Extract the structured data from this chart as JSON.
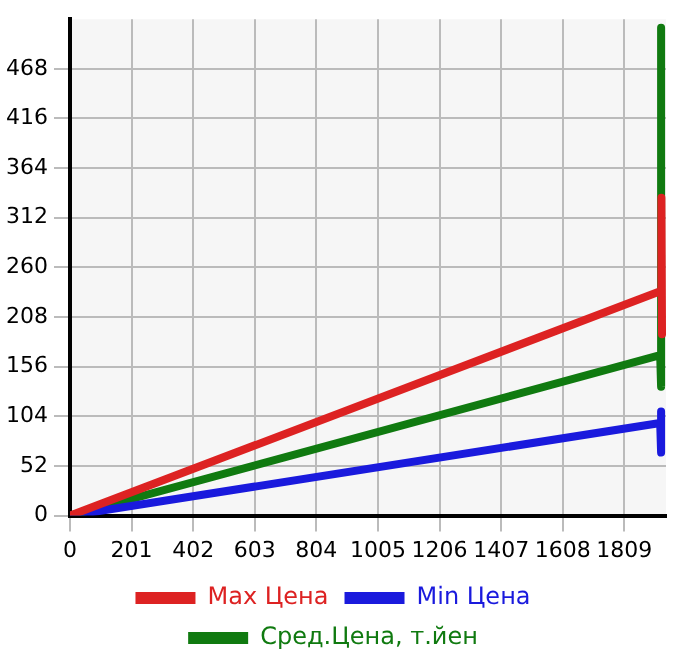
{
  "chart_data": {
    "type": "line",
    "xlim": [
      0,
      1945
    ],
    "xticks": [
      0,
      201,
      402,
      603,
      804,
      1005,
      1206,
      1407,
      1608,
      1809
    ],
    "ylim": [
      0,
      520
    ],
    "yticks": [
      0,
      52,
      104,
      156,
      208,
      260,
      312,
      364,
      416,
      468
    ],
    "grid": true,
    "legend": "bottom",
    "marker": "none",
    "line_style": "solid",
    "series": [
      {
        "name": "Max Цена",
        "color": "#dd2222",
        "x": [
          0,
          1926,
          1930,
          1932
        ],
        "values": [
          0,
          235,
          333,
          190
        ]
      },
      {
        "name": "Min Цена",
        "color": "#1a1add",
        "x": [
          0,
          1926,
          1928,
          1930
        ],
        "values": [
          0,
          97,
          109,
          66
        ]
      },
      {
        "name": "Сред.Цена, т.йен",
        "color": "#107a10",
        "x": [
          0,
          1926,
          1928,
          1930
        ],
        "values": [
          0,
          168,
          511,
          135
        ]
      }
    ]
  }
}
